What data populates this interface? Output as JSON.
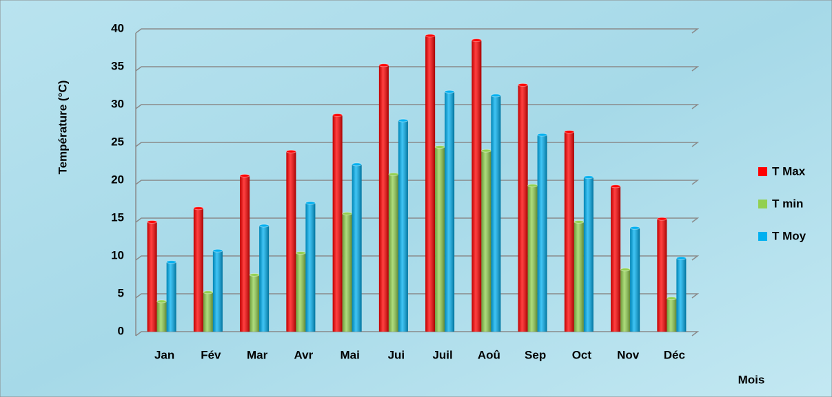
{
  "chart_data": {
    "type": "bar",
    "y_label": "Température (°C)",
    "x_label": "Mois",
    "categories": [
      "Jan",
      "Fév",
      "Mar",
      "Avr",
      "Mai",
      "Jui",
      "Juil",
      "Aoû",
      "Sep",
      "Oct",
      "Nov",
      "Déc"
    ],
    "series": [
      {
        "name": "T Max",
        "color": "#ff0000",
        "values": [
          14.5,
          16.3,
          20.6,
          23.8,
          28.6,
          35.2,
          39.1,
          38.5,
          32.6,
          26.4,
          19.2,
          14.9
        ]
      },
      {
        "name": "T min",
        "color": "#92d050",
        "values": [
          4,
          5.2,
          7.5,
          10.4,
          15.6,
          20.8,
          24.4,
          23.9,
          19.3,
          14.5,
          8.2,
          4.4
        ]
      },
      {
        "name": "T Moy",
        "color": "#00b0f0",
        "values": [
          9.2,
          10.7,
          14,
          17,
          22.1,
          27.9,
          31.7,
          31.2,
          26,
          20.4,
          13.7,
          9.7
        ]
      }
    ],
    "ylim": [
      0,
      40
    ],
    "yticks": [
      0,
      5,
      10,
      15,
      20,
      25,
      30,
      35,
      40
    ],
    "grid": true,
    "legend": "right"
  }
}
